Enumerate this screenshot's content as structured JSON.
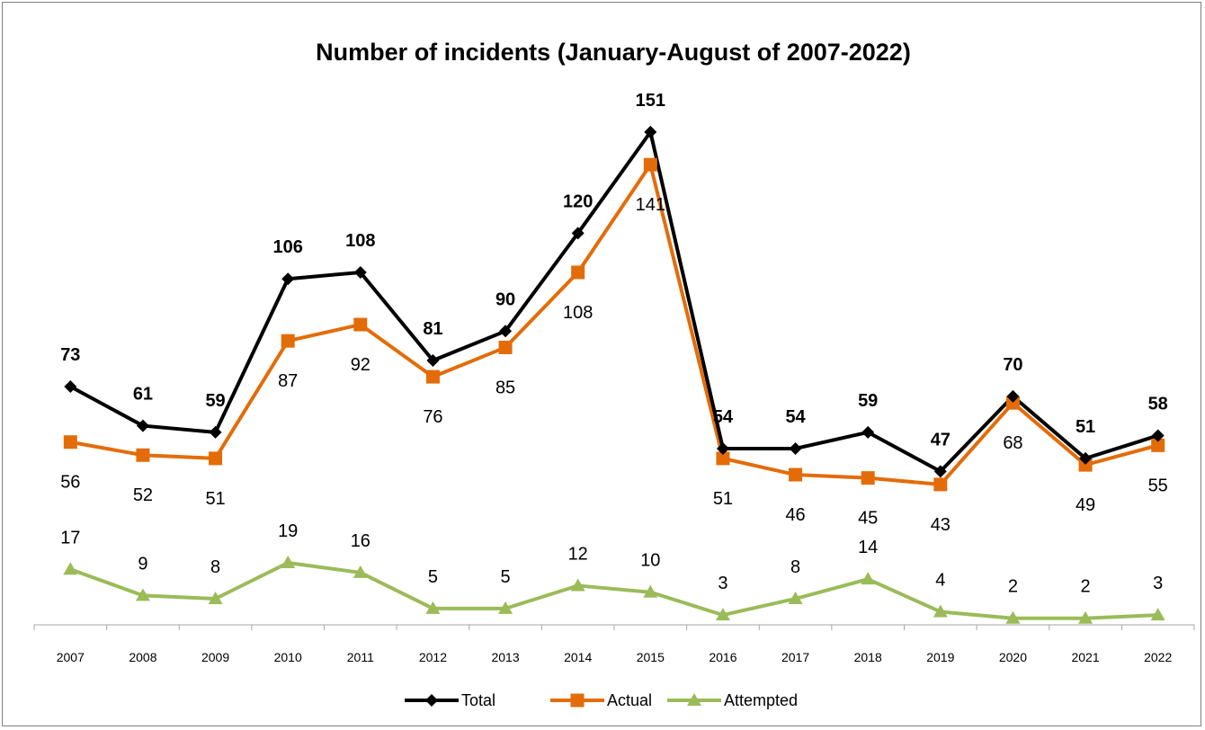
{
  "chart_data": {
    "type": "line",
    "title": "Number of incidents (January-August of 2007-2022)",
    "xlabel": "",
    "ylabel": "",
    "categories": [
      "2007",
      "2008",
      "2009",
      "2010",
      "2011",
      "2012",
      "2013",
      "2014",
      "2015",
      "2016",
      "2017",
      "2018",
      "2019",
      "2020",
      "2021",
      "2022"
    ],
    "ylim": [
      0,
      165
    ],
    "grid": false,
    "legend_position": "bottom",
    "data_labels": true,
    "series": [
      {
        "name": "Total",
        "color": "#000000",
        "marker": "diamond",
        "label_bold": true,
        "label_position": "above",
        "values": [
          73,
          61,
          59,
          106,
          108,
          81,
          90,
          120,
          151,
          54,
          54,
          59,
          47,
          70,
          51,
          58
        ]
      },
      {
        "name": "Actual",
        "color": "#E36C09",
        "marker": "square",
        "label_bold": false,
        "label_position": "below",
        "values": [
          56,
          52,
          51,
          87,
          92,
          76,
          85,
          108,
          141,
          51,
          46,
          45,
          43,
          68,
          49,
          55
        ]
      },
      {
        "name": "Attempted",
        "color": "#9BBB59",
        "marker": "triangle",
        "label_bold": false,
        "label_position": "above",
        "values": [
          17,
          9,
          8,
          19,
          16,
          5,
          5,
          12,
          10,
          3,
          8,
          14,
          4,
          2,
          2,
          3
        ]
      }
    ]
  }
}
